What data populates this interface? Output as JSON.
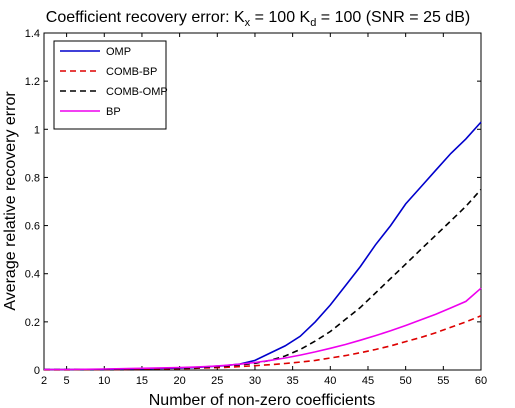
{
  "chart_data": {
    "type": "line",
    "title_main": "Coefficient recovery error: K",
    "title_sub1": "x",
    "title_mid": " = 100 K",
    "title_sub2": "d",
    "title_end": " = 100 (SNR = 25 dB)",
    "xlabel": "Number of non-zero coefficients",
    "ylabel": "Average relative recovery error",
    "xlim": [
      2,
      60
    ],
    "ylim": [
      0,
      1.4
    ],
    "xticks": [
      2,
      5,
      10,
      15,
      20,
      25,
      30,
      35,
      40,
      45,
      50,
      55,
      60
    ],
    "xtick_labels": [
      "2",
      "5",
      "10",
      "15",
      "20",
      "25",
      "30",
      "35",
      "40",
      "45",
      "50",
      "55",
      "60"
    ],
    "yticks": [
      0,
      0.2,
      0.4,
      0.6,
      0.8,
      1.0,
      1.2,
      1.4
    ],
    "ytick_labels": [
      "0",
      "0.2",
      "0.4",
      "0.6",
      "0.8",
      "1",
      "1.2",
      "1.4"
    ],
    "grid": false,
    "legend_position": "top-left",
    "x": [
      2,
      5,
      10,
      15,
      20,
      22,
      24,
      26,
      28,
      30,
      32,
      34,
      36,
      38,
      40,
      42,
      44,
      46,
      48,
      50,
      52,
      54,
      56,
      58,
      60
    ],
    "series": [
      {
        "name": "OMP",
        "color": "#0000cc",
        "dash": "solid",
        "values": [
          0.002,
          0.002,
          0.003,
          0.005,
          0.008,
          0.01,
          0.014,
          0.018,
          0.025,
          0.04,
          0.07,
          0.1,
          0.14,
          0.2,
          0.27,
          0.35,
          0.43,
          0.52,
          0.6,
          0.69,
          0.76,
          0.83,
          0.9,
          0.96,
          1.03
        ]
      },
      {
        "name": "COMB-BP",
        "color": "#dd0000",
        "dash": "dashed",
        "values": [
          0.001,
          0.001,
          0.002,
          0.003,
          0.006,
          0.007,
          0.009,
          0.011,
          0.014,
          0.018,
          0.022,
          0.027,
          0.033,
          0.04,
          0.05,
          0.06,
          0.072,
          0.085,
          0.1,
          0.118,
          0.135,
          0.155,
          0.178,
          0.2,
          0.225
        ]
      },
      {
        "name": "COMB-OMP",
        "color": "#000000",
        "dash": "dashed",
        "values": [
          0.002,
          0.002,
          0.003,
          0.005,
          0.007,
          0.009,
          0.012,
          0.016,
          0.021,
          0.028,
          0.04,
          0.058,
          0.085,
          0.12,
          0.16,
          0.21,
          0.26,
          0.32,
          0.38,
          0.44,
          0.5,
          0.56,
          0.62,
          0.68,
          0.75
        ]
      },
      {
        "name": "BP",
        "color": "#ee00ee",
        "dash": "solid",
        "values": [
          0.002,
          0.002,
          0.004,
          0.007,
          0.01,
          0.012,
          0.015,
          0.019,
          0.024,
          0.031,
          0.04,
          0.05,
          0.062,
          0.075,
          0.09,
          0.106,
          0.124,
          0.143,
          0.163,
          0.185,
          0.208,
          0.232,
          0.258,
          0.285,
          0.34
        ]
      }
    ]
  }
}
